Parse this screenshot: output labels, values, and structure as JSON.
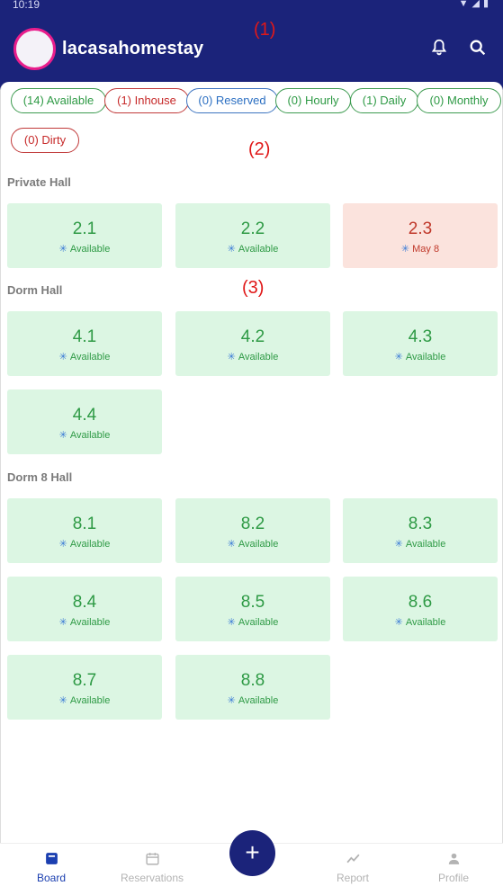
{
  "status": {
    "time": "10:19"
  },
  "header": {
    "title": "lacasahomestay"
  },
  "annotations": [
    "(1)",
    "(2)",
    "(3)"
  ],
  "filters": [
    {
      "label": "(14) Available",
      "tone": "green"
    },
    {
      "label": "(1) Inhouse",
      "tone": "red"
    },
    {
      "label": "(0) Reserved",
      "tone": "blue"
    },
    {
      "label": "(0) Hourly",
      "tone": "green"
    },
    {
      "label": "(1) Daily",
      "tone": "green"
    },
    {
      "label": "(0) Monthly",
      "tone": "green"
    },
    {
      "label": "(0) Dirty",
      "tone": "red"
    }
  ],
  "sections": [
    {
      "title": "Private Hall",
      "rooms": [
        {
          "number": "2.1",
          "status": "Available",
          "state": "available"
        },
        {
          "number": "2.2",
          "status": "Available",
          "state": "available"
        },
        {
          "number": "2.3",
          "status": "May 8",
          "state": "occupied"
        }
      ]
    },
    {
      "title": "Dorm Hall",
      "rooms": [
        {
          "number": "4.1",
          "status": "Available",
          "state": "available"
        },
        {
          "number": "4.2",
          "status": "Available",
          "state": "available"
        },
        {
          "number": "4.3",
          "status": "Available",
          "state": "available"
        },
        {
          "number": "4.4",
          "status": "Available",
          "state": "available"
        }
      ]
    },
    {
      "title": "Dorm 8 Hall",
      "rooms": [
        {
          "number": "8.1",
          "status": "Available",
          "state": "available"
        },
        {
          "number": "8.2",
          "status": "Available",
          "state": "available"
        },
        {
          "number": "8.3",
          "status": "Available",
          "state": "available"
        },
        {
          "number": "8.4",
          "status": "Available",
          "state": "available"
        },
        {
          "number": "8.5",
          "status": "Available",
          "state": "available"
        },
        {
          "number": "8.6",
          "status": "Available",
          "state": "available"
        },
        {
          "number": "8.7",
          "status": "Available",
          "state": "available"
        },
        {
          "number": "8.8",
          "status": "Available",
          "state": "available"
        }
      ]
    }
  ],
  "nav": [
    {
      "label": "Board",
      "icon": "board-icon",
      "active": true
    },
    {
      "label": "Reservations",
      "icon": "calendar-icon",
      "active": false
    },
    {
      "label": "Report",
      "icon": "chart-icon",
      "active": false
    },
    {
      "label": "Profile",
      "icon": "person-icon",
      "active": false
    }
  ],
  "fab": {
    "label": "+"
  },
  "colors": {
    "header": "#1b237a",
    "available_bg": "#dcf6e3",
    "occupied_bg": "#fbe3dd",
    "active_nav": "#1b3fb0"
  }
}
